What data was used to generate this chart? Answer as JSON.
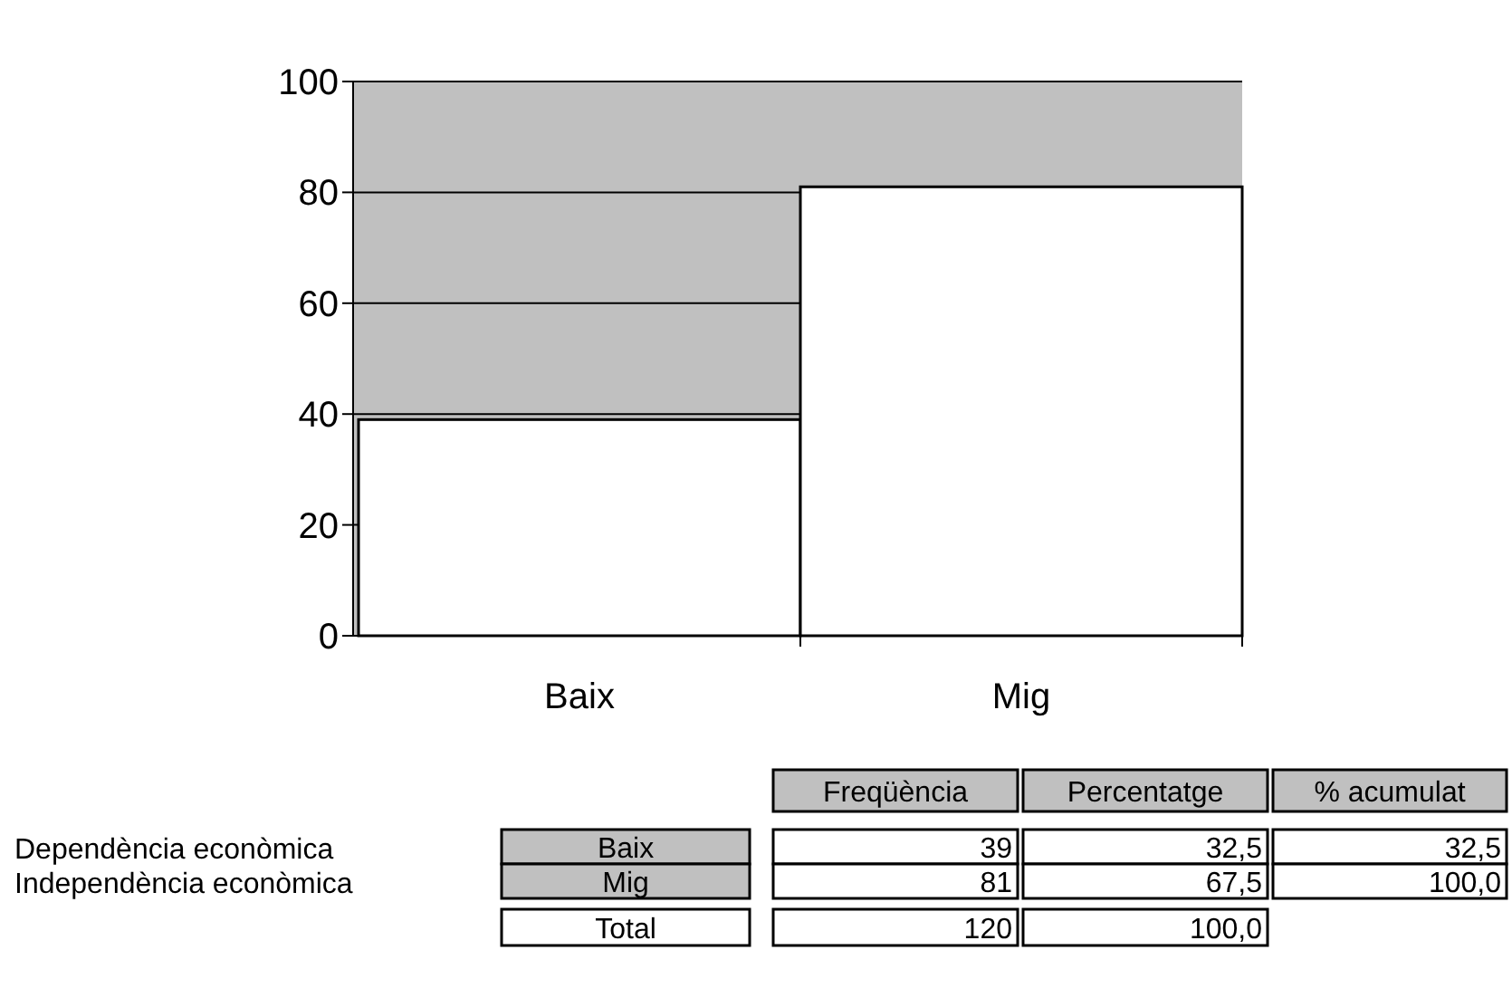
{
  "chart_data": {
    "type": "bar",
    "categories": [
      "Baix",
      "Mig"
    ],
    "values": [
      39,
      81
    ],
    "color": "#ffffff",
    "ylim": [
      0,
      100
    ],
    "yticks": [
      0,
      20,
      40,
      60,
      80,
      100
    ],
    "grid": "y",
    "annotations": [
      "Freqüència",
      "Percentatge",
      "% acumulat",
      "Dependència econòmica",
      "Independència econòmica",
      "39",
      "32,5",
      "32,5",
      "81",
      "67,5",
      "100,0",
      "Total",
      "120",
      "100,0"
    ]
  }
}
